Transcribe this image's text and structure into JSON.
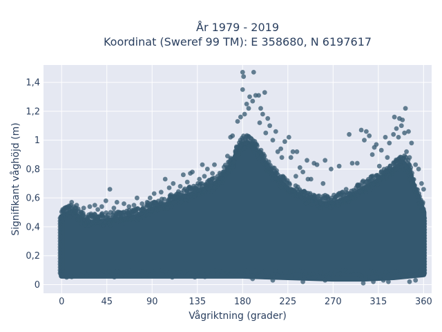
{
  "chart_data": {
    "type": "scatter",
    "title": [
      "År 1979 - 2019",
      "Koordinat (Sweref 99 TM): E 358680, N 6197617"
    ],
    "xlabel": "Vågriktning (grader)",
    "ylabel": "Signifikant våghöjd (m)",
    "xlim": [
      -18,
      368
    ],
    "ylim": [
      -0.06,
      1.52
    ],
    "xticks": [
      0,
      45,
      90,
      135,
      180,
      225,
      270,
      315,
      360
    ],
    "xtick_labels": [
      "0",
      "45",
      "90",
      "135",
      "180",
      "225",
      "270",
      "315",
      "360"
    ],
    "yticks": [
      0,
      0.2,
      0.4,
      0.6,
      0.8,
      1.0,
      1.2,
      1.4
    ],
    "ytick_labels": [
      "0",
      "0,2",
      "0,4",
      "0,6",
      "0,8",
      "1",
      "1,2",
      "1,4"
    ],
    "grid": true,
    "marker_color": "#34586f",
    "plot_bgcolor": "#e5e8f2",
    "upper_envelope": {
      "x": [
        0,
        10,
        20,
        30,
        45,
        60,
        75,
        90,
        105,
        120,
        135,
        150,
        160,
        170,
        175,
        180,
        185,
        190,
        200,
        210,
        225,
        240,
        255,
        270,
        285,
        300,
        315,
        325,
        335,
        340,
        345,
        350,
        360
      ],
      "y": [
        0.47,
        0.5,
        0.45,
        0.43,
        0.44,
        0.45,
        0.47,
        0.52,
        0.55,
        0.6,
        0.64,
        0.68,
        0.74,
        0.84,
        0.92,
        0.97,
        0.98,
        0.96,
        0.86,
        0.76,
        0.66,
        0.6,
        0.56,
        0.56,
        0.6,
        0.66,
        0.72,
        0.77,
        0.82,
        0.84,
        0.8,
        0.68,
        0.5
      ]
    },
    "lower_envelope": {
      "x": [
        0,
        180,
        225,
        270,
        300,
        330,
        360
      ],
      "y": [
        0.06,
        0.06,
        0.05,
        0.04,
        0.04,
        0.05,
        0.07
      ]
    },
    "points": [
      [
        180,
        1.47
      ],
      [
        191,
        1.47
      ],
      [
        181,
        1.44
      ],
      [
        180,
        1.35
      ],
      [
        187,
        1.3
      ],
      [
        193,
        1.31
      ],
      [
        196,
        1.31
      ],
      [
        202,
        1.33
      ],
      [
        184,
        1.25
      ],
      [
        190,
        1.27
      ],
      [
        186,
        1.22
      ],
      [
        182,
        1.18
      ],
      [
        178,
        1.16
      ],
      [
        175,
        1.13
      ],
      [
        198,
        1.22
      ],
      [
        205,
        1.15
      ],
      [
        200,
        1.18
      ],
      [
        207,
        1.1
      ],
      [
        213,
        1.06
      ],
      [
        226,
        1.02
      ],
      [
        222,
        0.99
      ],
      [
        218,
        0.94
      ],
      [
        230,
        0.92
      ],
      [
        234,
        0.92
      ],
      [
        237,
        0.81
      ],
      [
        240,
        0.78
      ],
      [
        248,
        0.73
      ],
      [
        251,
        0.84
      ],
      [
        254,
        0.83
      ],
      [
        262,
        0.86
      ],
      [
        244,
        0.86
      ],
      [
        228,
        0.88
      ],
      [
        286,
        1.04
      ],
      [
        294,
        0.84
      ],
      [
        298,
        1.07
      ],
      [
        303,
        1.06
      ],
      [
        301,
        1.0
      ],
      [
        306,
        1.03
      ],
      [
        309,
        0.9
      ],
      [
        311,
        0.95
      ],
      [
        313,
        0.97
      ],
      [
        318,
        0.93
      ],
      [
        322,
        1.02
      ],
      [
        326,
        0.98
      ],
      [
        330,
        1.04
      ],
      [
        333,
        1.08
      ],
      [
        335,
        1.02
      ],
      [
        338,
        1.1
      ],
      [
        339,
        1.14
      ],
      [
        342,
        1.22
      ],
      [
        336,
        1.15
      ],
      [
        331,
        1.16
      ],
      [
        341,
        1.05
      ],
      [
        345,
        1.06
      ],
      [
        348,
        0.98
      ],
      [
        346,
        0.88
      ],
      [
        352,
        0.83
      ],
      [
        355,
        0.8
      ],
      [
        358,
        0.7
      ],
      [
        360,
        0.66
      ],
      [
        347,
        0.77
      ],
      [
        343,
        0.92
      ],
      [
        324,
        0.88
      ],
      [
        316,
        0.82
      ],
      [
        289,
        0.84
      ],
      [
        276,
        0.82
      ],
      [
        268,
        0.8
      ],
      [
        283,
        0.66
      ],
      [
        260,
        0.7
      ],
      [
        245,
        0.73
      ],
      [
        233,
        0.75
      ],
      [
        210,
        1.0
      ],
      [
        215,
        0.92
      ],
      [
        219,
        0.88
      ],
      [
        203,
        1.05
      ],
      [
        197,
        1.12
      ],
      [
        170,
        1.03
      ],
      [
        168,
        1.02
      ],
      [
        165,
        0.89
      ],
      [
        162,
        0.78
      ],
      [
        157,
        0.74
      ],
      [
        150,
        0.77
      ],
      [
        145,
        0.8
      ],
      [
        140,
        0.83
      ],
      [
        137,
        0.73
      ],
      [
        130,
        0.78
      ],
      [
        125,
        0.71
      ],
      [
        118,
        0.68
      ],
      [
        111,
        0.7
      ],
      [
        103,
        0.73
      ],
      [
        99,
        0.64
      ],
      [
        92,
        0.63
      ],
      [
        85,
        0.57
      ],
      [
        80,
        0.56
      ],
      [
        75,
        0.6
      ],
      [
        72,
        0.55
      ],
      [
        62,
        0.56
      ],
      [
        55,
        0.57
      ],
      [
        48,
        0.66
      ],
      [
        44,
        0.58
      ],
      [
        40,
        0.54
      ],
      [
        33,
        0.55
      ],
      [
        28,
        0.54
      ],
      [
        22,
        0.53
      ],
      [
        15,
        0.55
      ],
      [
        8,
        0.54
      ],
      [
        3,
        0.53
      ],
      [
        1,
        0.52
      ],
      [
        10,
        0.57
      ],
      [
        36,
        0.52
      ],
      [
        52,
        0.53
      ],
      [
        67,
        0.54
      ],
      [
        88,
        0.6
      ],
      [
        107,
        0.67
      ],
      [
        121,
        0.76
      ],
      [
        128,
        0.77
      ],
      [
        142,
        0.75
      ],
      [
        152,
        0.83
      ],
      [
        178,
        0.95
      ],
      [
        240,
        0.02
      ],
      [
        262,
        0.03
      ],
      [
        300,
        0.01
      ],
      [
        310,
        0.02
      ],
      [
        320,
        0.03
      ],
      [
        325,
        0.02
      ],
      [
        210,
        0.03
      ],
      [
        190,
        0.04
      ],
      [
        346,
        0.02
      ],
      [
        352,
        0.03
      ]
    ]
  }
}
